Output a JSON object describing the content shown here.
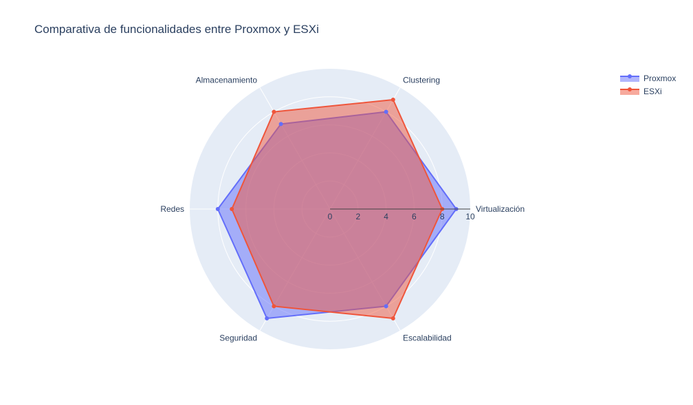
{
  "chart_data": {
    "type": "radar",
    "title": "Comparativa de funcionalidades entre Proxmox y ESXi",
    "categories": [
      "Virtualización",
      "Clustering",
      "Almacenamiento",
      "Redes",
      "Seguridad",
      "Escalabilidad"
    ],
    "series": [
      {
        "name": "Proxmox",
        "values": [
          9,
          8,
          7,
          8,
          9,
          8
        ],
        "color": "#636efa"
      },
      {
        "name": "ESXi",
        "values": [
          8,
          9,
          8,
          7,
          8,
          9
        ],
        "color": "#ef553b"
      }
    ],
    "radial_range": [
      0,
      10
    ],
    "radial_ticks": [
      "0",
      "2",
      "4",
      "6",
      "8",
      "10"
    ],
    "grid": true,
    "legend_position": "top-right",
    "background_color": "#e5ecf6"
  }
}
